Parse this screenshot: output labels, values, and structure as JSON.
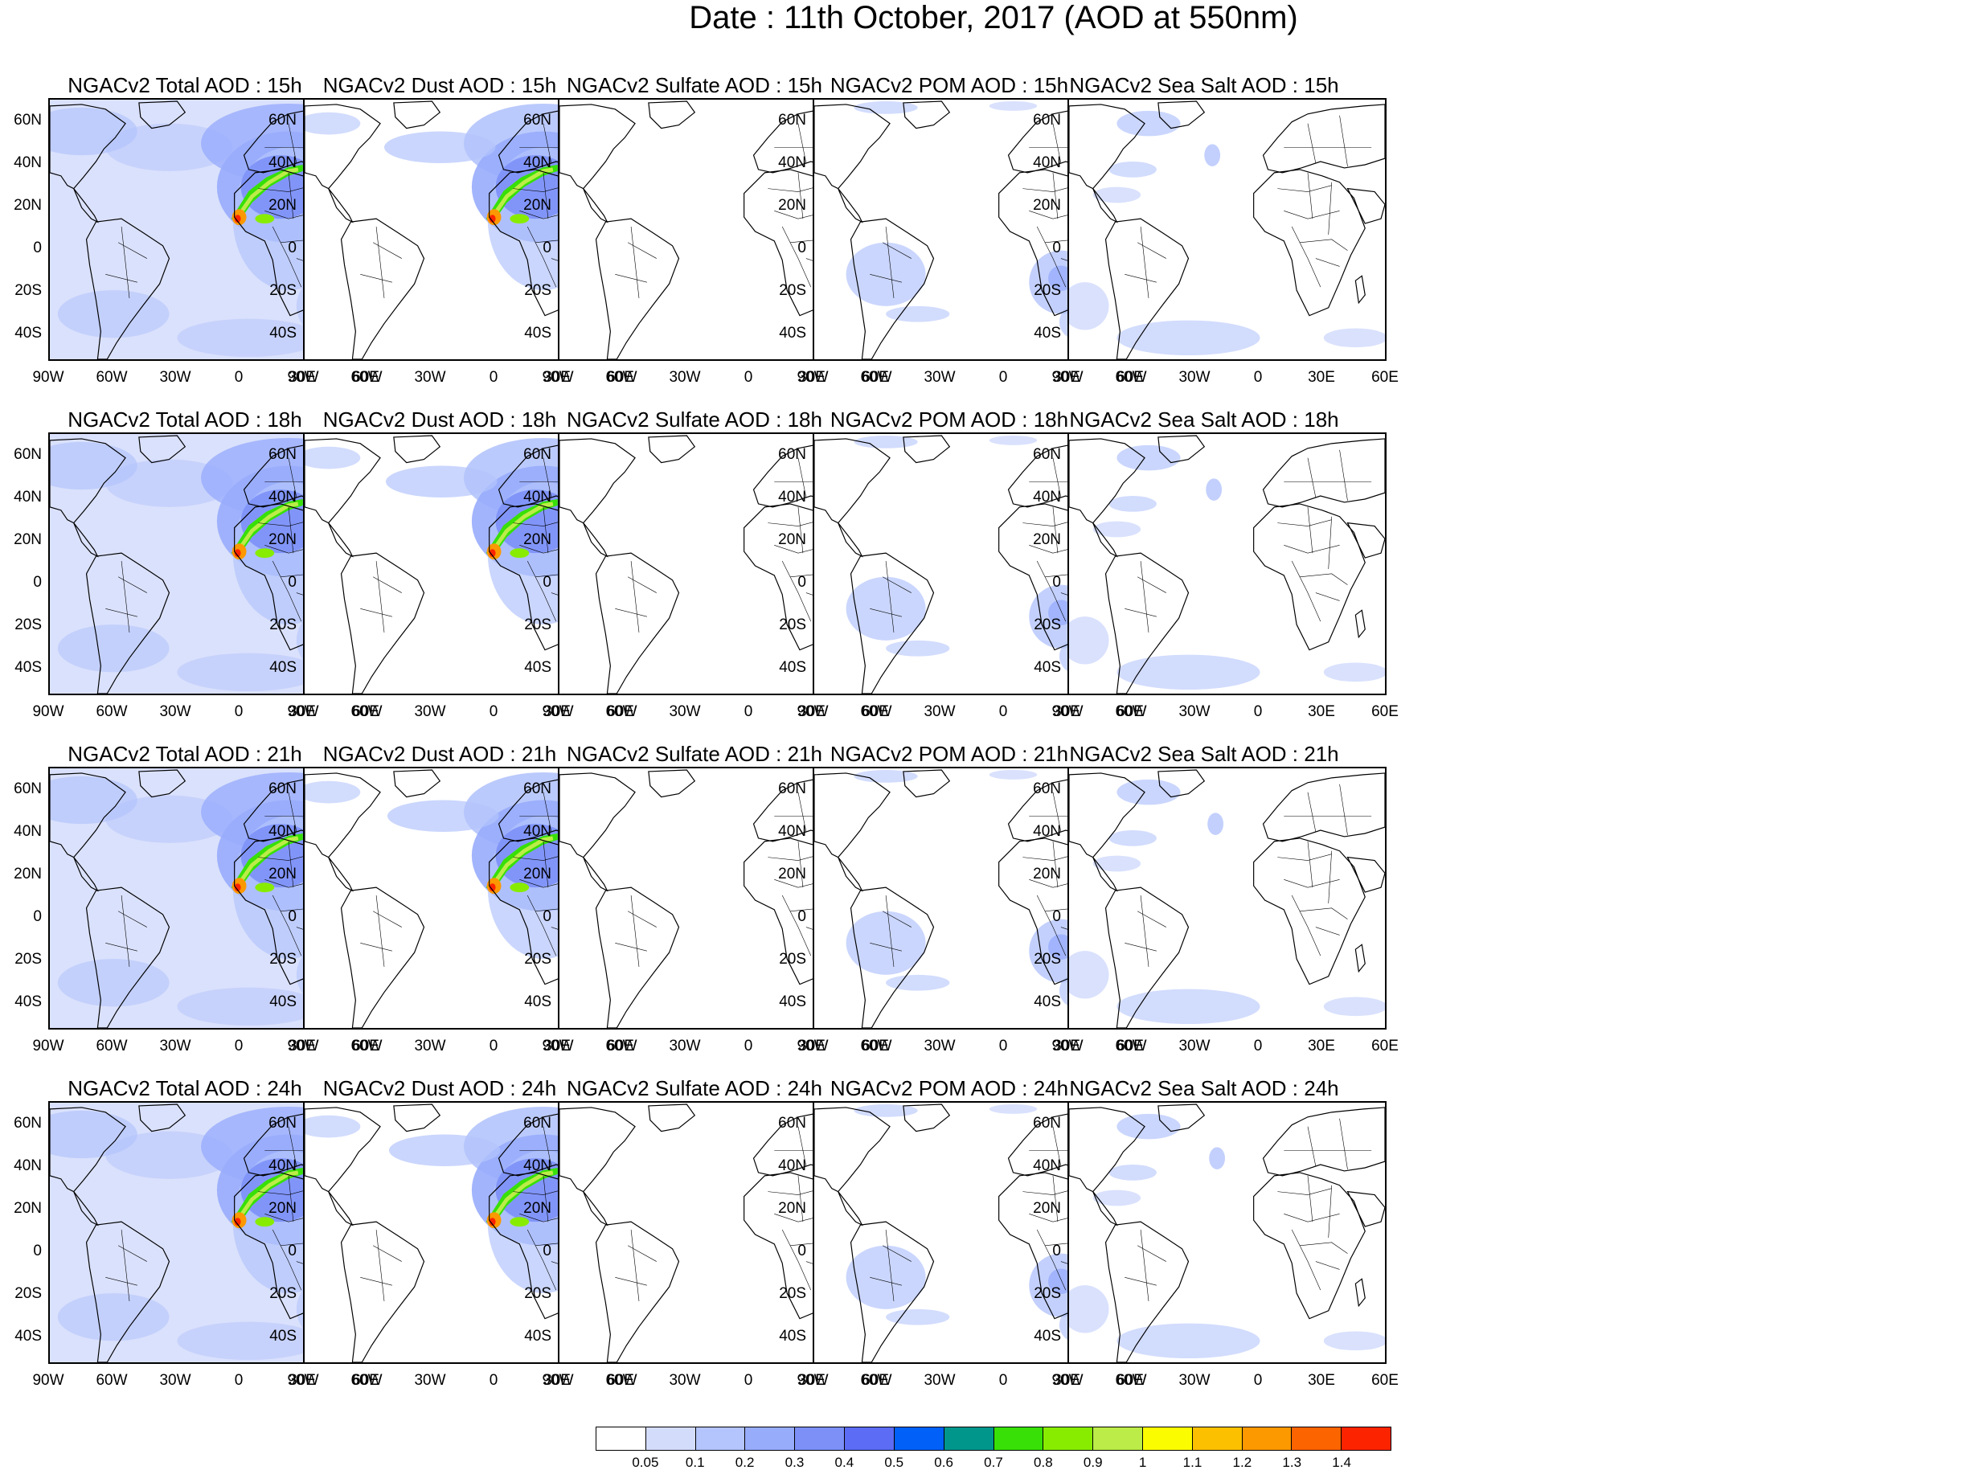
{
  "title": "Date : 11th October, 2017 (AOD at 550nm)",
  "lat_labels": [
    "60N",
    "40N",
    "20N",
    "0",
    "20S",
    "40S"
  ],
  "lon_labels": [
    "90W",
    "60W",
    "30W",
    "0",
    "30E",
    "60E"
  ],
  "panels": [
    {
      "title": "NGACv2 Total AOD : 15h",
      "species": "total"
    },
    {
      "title": "NGACv2 Dust AOD : 15h",
      "species": "dust"
    },
    {
      "title": "NGACv2 Sulfate AOD : 15h",
      "species": "sulfate"
    },
    {
      "title": "NGACv2 POM AOD : 15h",
      "species": "pom"
    },
    {
      "title": "NGACv2 Sea Salt AOD : 15h",
      "species": "seasalt"
    },
    {
      "title": "NGACv2 Total AOD : 18h",
      "species": "total"
    },
    {
      "title": "NGACv2 Dust AOD : 18h",
      "species": "dust"
    },
    {
      "title": "NGACv2 Sulfate AOD : 18h",
      "species": "sulfate"
    },
    {
      "title": "NGACv2 POM AOD : 18h",
      "species": "pom"
    },
    {
      "title": "NGACv2 Sea Salt AOD : 18h",
      "species": "seasalt"
    },
    {
      "title": "NGACv2 Total AOD : 21h",
      "species": "total"
    },
    {
      "title": "NGACv2 Dust AOD : 21h",
      "species": "dust"
    },
    {
      "title": "NGACv2 Sulfate AOD : 21h",
      "species": "sulfate"
    },
    {
      "title": "NGACv2 POM AOD : 21h",
      "species": "pom"
    },
    {
      "title": "NGACv2 Sea Salt AOD : 21h",
      "species": "seasalt"
    },
    {
      "title": "NGACv2 Total AOD : 24h",
      "species": "total"
    },
    {
      "title": "NGACv2 Dust AOD : 24h",
      "species": "dust"
    },
    {
      "title": "NGACv2 Sulfate AOD : 24h",
      "species": "sulfate"
    },
    {
      "title": "NGACv2 POM AOD : 24h",
      "species": "pom"
    },
    {
      "title": "NGACv2 Sea Salt  AOD : 24h",
      "species": "seasalt"
    }
  ],
  "colorbar": {
    "labels": [
      "0.05",
      "0.1",
      "0.2",
      "0.3",
      "0.4",
      "0.5",
      "0.6",
      "0.7",
      "0.8",
      "0.9",
      "1",
      "1.1",
      "1.2",
      "1.3",
      "1.4"
    ],
    "colors": [
      "#ffffff",
      "#d4dcfc",
      "#b4c4fc",
      "#98acfc",
      "#7c90f8",
      "#5c6cf4",
      "#0060f8",
      "#00968c",
      "#38e008",
      "#88ec00",
      "#bcec48",
      "#fcfc00",
      "#fcc000",
      "#fc9800",
      "#fc6400",
      "#fc2400"
    ]
  }
}
